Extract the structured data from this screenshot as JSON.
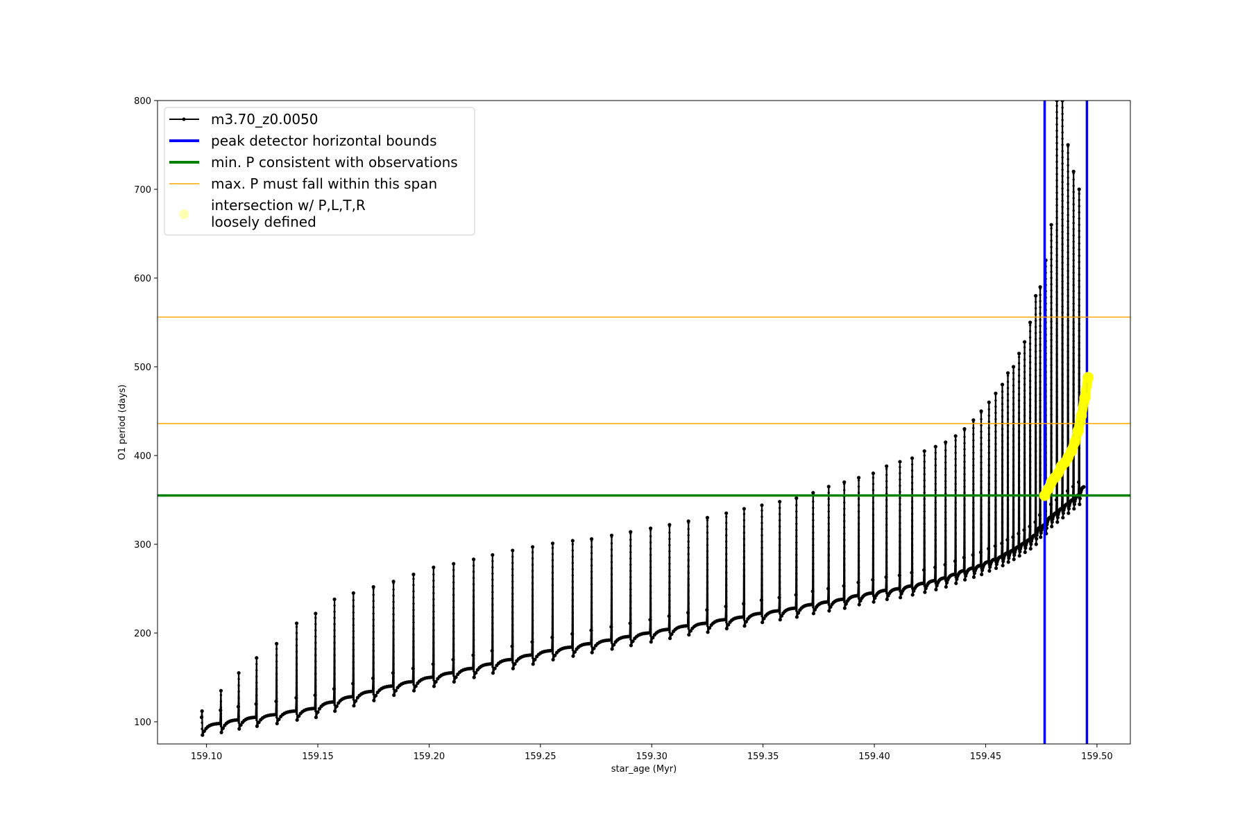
{
  "chart_data": {
    "type": "line",
    "title": "",
    "xlabel": "star_age (Myr)",
    "ylabel": "O1 period (days)",
    "xlim": [
      159.078,
      159.515
    ],
    "ylim": [
      75,
      800
    ],
    "x_ticks": [
      159.1,
      159.15,
      159.2,
      159.25,
      159.3,
      159.35,
      159.4,
      159.45,
      159.5
    ],
    "x_tick_labels": [
      "159.10",
      "159.15",
      "159.20",
      "159.25",
      "159.30",
      "159.35",
      "159.40",
      "159.45",
      "159.50"
    ],
    "y_ticks": [
      100,
      200,
      300,
      400,
      500,
      600,
      700,
      800
    ],
    "y_tick_labels": [
      "100",
      "200",
      "300",
      "400",
      "500",
      "600",
      "700",
      "800"
    ],
    "grid": false,
    "legend_placement": "upper-left",
    "series": [
      {
        "name": "m3.70_z0.0050",
        "kind": "line-with-markers",
        "color": "#000000",
        "pulse_ages": [
          159.098,
          159.1065,
          159.1145,
          159.1225,
          159.1315,
          159.1405,
          159.149,
          159.1575,
          159.166,
          159.175,
          159.184,
          159.193,
          159.202,
          159.211,
          159.22,
          159.2285,
          159.2375,
          159.2465,
          159.2555,
          159.2645,
          159.273,
          159.282,
          159.2905,
          159.2995,
          159.308,
          159.3165,
          159.325,
          159.3335,
          159.3415,
          159.3495,
          159.3575,
          159.365,
          159.3725,
          159.3795,
          159.3865,
          159.393,
          159.3995,
          159.4055,
          159.4115,
          159.417,
          159.4225,
          159.4275,
          159.432,
          159.4365,
          159.4405,
          159.4445,
          159.448,
          159.4515,
          159.4545,
          159.4575,
          159.46,
          159.4625,
          159.465,
          159.4675,
          159.47,
          159.4725,
          159.4745,
          159.477,
          159.4795,
          159.482,
          159.4845,
          159.487,
          159.4895,
          159.492
        ],
        "pulse_peaks": [
          112,
          135,
          155,
          172,
          188,
          211,
          222,
          238,
          245,
          252,
          258,
          266,
          274,
          278,
          283,
          288,
          293,
          297,
          301,
          304,
          306,
          310,
          314,
          318,
          322,
          326,
          330,
          335,
          340,
          344,
          348,
          352,
          358,
          365,
          370,
          375,
          380,
          388,
          393,
          397,
          405,
          410,
          415,
          422,
          430,
          440,
          450,
          460,
          470,
          480,
          493,
          500,
          515,
          528,
          550,
          580,
          590,
          620,
          660,
          800,
          800,
          750,
          720,
          700
        ],
        "troughs": [
          85,
          88,
          92,
          95,
          98,
          102,
          105,
          112,
          118,
          124,
          130,
          135,
          140,
          145,
          150,
          155,
          160,
          165,
          170,
          174,
          178,
          182,
          186,
          190,
          194,
          198,
          201,
          205,
          208,
          212,
          215,
          218,
          222,
          225,
          228,
          232,
          235,
          238,
          240,
          243,
          246,
          249,
          252,
          256,
          260,
          263,
          266,
          270,
          273,
          276,
          280,
          283,
          287,
          291,
          295,
          300,
          308,
          312,
          320,
          325,
          330,
          335,
          340,
          345
        ]
      },
      {
        "name": "intersection w/ P,L,T,R\nloosely defined",
        "kind": "scatter-band",
        "color": "#ffff00",
        "x": [
          159.4765,
          159.478,
          159.4795,
          159.481,
          159.4825,
          159.484,
          159.4855,
          159.487,
          159.4885,
          159.49,
          159.4915,
          159.493,
          159.4945,
          159.496
        ],
        "y": [
          355,
          362,
          370,
          375,
          380,
          388,
          392,
          398,
          405,
          415,
          428,
          445,
          465,
          488
        ]
      }
    ],
    "reference_lines": [
      {
        "name": "peak detector horizontal bounds",
        "orientation": "vertical",
        "values": [
          159.4765,
          159.4955
        ],
        "color": "#0000ff"
      },
      {
        "name": "min. P consistent with observations",
        "orientation": "horizontal",
        "values": [
          355
        ],
        "color": "#008000"
      },
      {
        "name": "max. P must fall within this span",
        "orientation": "horizontal",
        "values": [
          436,
          556
        ],
        "color": "#ffa500"
      }
    ],
    "legend": [
      {
        "label": "m3.70_z0.0050",
        "style": "black-line-marker"
      },
      {
        "label": "peak detector horizontal bounds",
        "style": "blue-thick-line"
      },
      {
        "label": "min. P consistent with observations",
        "style": "green-thick-line"
      },
      {
        "label": "max. P must fall within this span",
        "style": "orange-thin-line"
      },
      {
        "label": "intersection w/ P,L,T,R\nloosely defined",
        "style": "yellow-dot"
      }
    ]
  }
}
